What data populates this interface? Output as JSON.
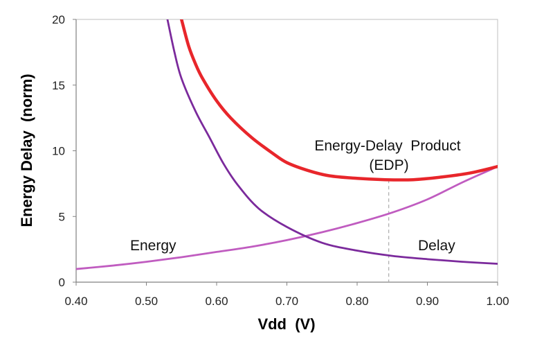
{
  "chart_data": {
    "type": "line",
    "title": "",
    "xlabel": "Vdd  (V)",
    "ylabel": "Energy Delay  (norm)",
    "xlim": [
      0.4,
      1.0
    ],
    "ylim": [
      0,
      20
    ],
    "x_ticks": [
      "0.40",
      "0.50",
      "0.60",
      "0.70",
      "0.80",
      "0.90",
      "1.00"
    ],
    "y_ticks": [
      "0",
      "5",
      "10",
      "15",
      "20"
    ],
    "grid": false,
    "series": [
      {
        "name": "Energy",
        "color": "#c05cc0",
        "x": [
          0.4,
          0.45,
          0.5,
          0.55,
          0.6,
          0.65,
          0.7,
          0.75,
          0.8,
          0.85,
          0.9,
          0.95,
          1.0
        ],
        "values": [
          1.0,
          1.25,
          1.55,
          1.9,
          2.3,
          2.7,
          3.2,
          3.8,
          4.5,
          5.3,
          6.3,
          7.6,
          8.8
        ]
      },
      {
        "name": "Delay",
        "color": "#7b2a9c",
        "x": [
          0.53,
          0.54,
          0.55,
          0.57,
          0.59,
          0.61,
          0.63,
          0.66,
          0.7,
          0.75,
          0.8,
          0.85,
          0.9,
          0.95,
          1.0
        ],
        "values": [
          20.0,
          17.5,
          15.5,
          13.0,
          11.0,
          9.0,
          7.4,
          5.6,
          4.2,
          3.0,
          2.4,
          2.0,
          1.75,
          1.55,
          1.4
        ]
      },
      {
        "name": "Energy-Delay Product (EDP)",
        "color": "#e8262b",
        "x": [
          0.55,
          0.56,
          0.57,
          0.58,
          0.6,
          0.62,
          0.65,
          0.68,
          0.7,
          0.73,
          0.76,
          0.8,
          0.84,
          0.88,
          0.92,
          0.96,
          1.0
        ],
        "values": [
          20.0,
          18.0,
          16.6,
          15.5,
          13.8,
          12.5,
          11.0,
          9.8,
          9.1,
          8.5,
          8.1,
          7.9,
          7.8,
          7.8,
          8.0,
          8.3,
          8.8
        ]
      }
    ],
    "annotations": {
      "energy_label": "Energy",
      "delay_label": "Delay",
      "edp_label_line1": "Energy-Delay  Product",
      "edp_label_line2": "(EDP)",
      "edp_min_x": 0.845,
      "edp_min_y": 7.8
    }
  }
}
